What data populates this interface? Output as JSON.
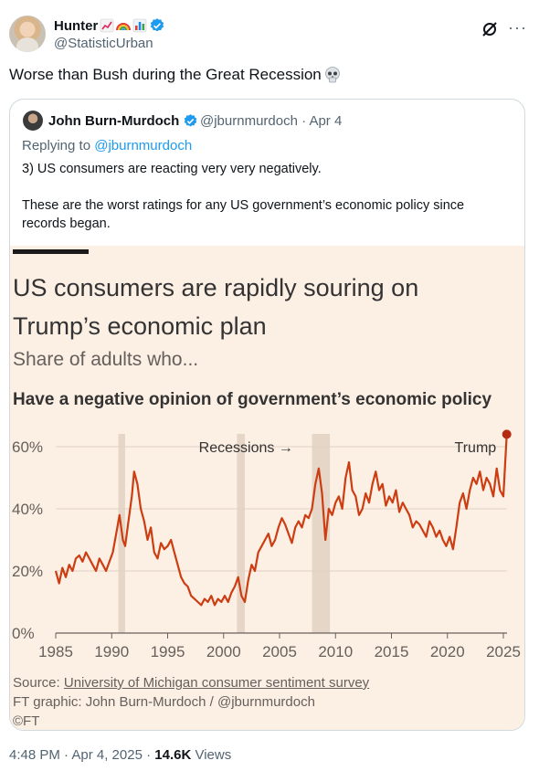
{
  "tweet": {
    "author_name": "Hunter",
    "handle": "@StatisticUrban",
    "text": "Worse than Bush during the Great Recession",
    "timestamp": "4:48 PM · Apr 4, 2025",
    "views_count": "14.6K",
    "views_label": "Views",
    "more_label": "···"
  },
  "quote": {
    "author_name": "John Burn-Murdoch",
    "meta": "@jburnmurdoch · Apr 4",
    "reply_prefix": "Replying to",
    "reply_handle": "@jburnmurdoch",
    "text_1": "3) US consumers are reacting very very negatively.",
    "text_2": "These are the worst ratings for any US government’s economic policy since records began."
  },
  "figure": {
    "title": "US consumers are rapidly souring on Trump’s economic plan",
    "subtitle": "Share of adults who...",
    "heading": "Have a negative opinion of government’s economic policy",
    "source_prefix": "Source:",
    "source_link": "University of Michigan consumer sentiment survey",
    "credit": "FT graphic: John Burn-Murdoch / @jburnmurdoch",
    "copyright": "©FT"
  },
  "chart_data": {
    "type": "line",
    "title": "Have a negative opinion of government’s economic policy",
    "xlabel": "",
    "ylabel": "",
    "xlim": [
      1985,
      2025
    ],
    "ylim": [
      0,
      60
    ],
    "y_ticks": [
      "0%",
      "20%",
      "40%",
      "60%"
    ],
    "y_tick_values": [
      0,
      20,
      40,
      60
    ],
    "x_ticks": [
      "1985",
      "1990",
      "1995",
      "2000",
      "2005",
      "2010",
      "2015",
      "2020",
      "2025"
    ],
    "x_tick_values": [
      1985,
      1990,
      1995,
      2000,
      2005,
      2010,
      2015,
      2020,
      2025
    ],
    "grid": true,
    "recessions": [
      [
        1990.6,
        1991.2
      ],
      [
        2001.2,
        2001.9
      ],
      [
        2007.9,
        2009.5
      ]
    ],
    "annotations": [
      {
        "text": "Recessions →",
        "x": 2002,
        "y": 60
      },
      {
        "text": "Trump",
        "x": 2022.5,
        "y": 60
      }
    ],
    "colors": {
      "line": "#cc3d12",
      "recession": "#e6d6c8",
      "grid": "#e0d2c5",
      "end_point": "#b52a12"
    },
    "series": [
      {
        "x": [
          1985.0,
          1985.3,
          1985.6,
          1985.9,
          1986.2,
          1986.5,
          1986.8,
          1987.1,
          1987.4,
          1987.7,
          1988.0,
          1988.3,
          1988.6,
          1988.9,
          1989.2,
          1989.5,
          1989.8,
          1990.1,
          1990.4,
          1990.7,
          1991.0,
          1991.2,
          1991.5,
          1991.8,
          1992.0,
          1992.3,
          1992.6,
          1992.9,
          1993.2,
          1993.5,
          1993.8,
          1994.1,
          1994.4,
          1994.7,
          1995.0,
          1995.3,
          1995.6,
          1995.9,
          1996.2,
          1996.5,
          1996.8,
          1997.1,
          1997.4,
          1997.7,
          1998.0,
          1998.3,
          1998.6,
          1998.9,
          1999.2,
          1999.5,
          1999.8,
          2000.1,
          2000.4,
          2000.7,
          2001.0,
          2001.3,
          2001.6,
          2001.9,
          2002.2,
          2002.5,
          2002.8,
          2003.1,
          2003.4,
          2003.7,
          2004.0,
          2004.3,
          2004.6,
          2004.9,
          2005.2,
          2005.5,
          2005.8,
          2006.1,
          2006.4,
          2006.7,
          2007.0,
          2007.3,
          2007.6,
          2007.9,
          2008.2,
          2008.5,
          2008.8,
          2009.1,
          2009.4,
          2009.7,
          2010.0,
          2010.3,
          2010.6,
          2010.9,
          2011.2,
          2011.5,
          2011.8,
          2012.1,
          2012.4,
          2012.7,
          2013.0,
          2013.3,
          2013.6,
          2013.9,
          2014.2,
          2014.5,
          2014.8,
          2015.1,
          2015.4,
          2015.7,
          2016.0,
          2016.3,
          2016.6,
          2016.9,
          2017.2,
          2017.5,
          2017.8,
          2018.1,
          2018.4,
          2018.7,
          2019.0,
          2019.3,
          2019.6,
          2019.9,
          2020.2,
          2020.5,
          2020.8,
          2021.1,
          2021.4,
          2021.7,
          2022.0,
          2022.3,
          2022.6,
          2022.9,
          2023.2,
          2023.5,
          2023.8,
          2024.1,
          2024.4,
          2024.7,
          2025.0,
          2025.3
        ],
        "y": [
          20,
          16,
          21,
          18,
          22,
          20,
          24,
          25,
          23,
          26,
          24,
          22,
          20,
          24,
          22,
          20,
          23,
          26,
          32,
          38,
          30,
          28,
          36,
          44,
          52,
          48,
          40,
          36,
          30,
          34,
          26,
          24,
          29,
          27,
          28,
          30,
          26,
          22,
          18,
          16,
          15,
          12,
          11,
          10,
          9,
          11,
          10,
          12,
          9,
          11,
          10,
          12,
          10,
          13,
          15,
          18,
          12,
          10,
          17,
          22,
          20,
          26,
          28,
          30,
          32,
          28,
          30,
          34,
          37,
          35,
          32,
          29,
          34,
          36,
          34,
          38,
          37,
          40,
          48,
          53,
          45,
          30,
          40,
          38,
          42,
          44,
          40,
          50,
          55,
          46,
          44,
          38,
          40,
          45,
          42,
          48,
          52,
          46,
          48,
          41,
          44,
          42,
          46,
          39,
          42,
          40,
          38,
          34,
          36,
          35,
          33,
          31,
          36,
          34,
          31,
          33,
          30,
          28,
          31,
          27,
          34,
          42,
          45,
          40,
          46,
          50,
          48,
          52,
          46,
          50,
          48,
          44,
          53,
          46,
          44,
          64
        ]
      }
    ]
  }
}
